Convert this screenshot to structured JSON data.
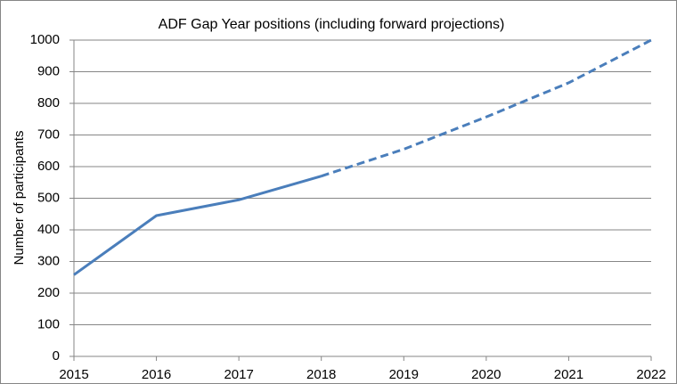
{
  "chart_data": {
    "type": "line",
    "title": "ADF Gap Year positions (including forward projections)",
    "y_label": "Number of participants",
    "x": [
      2015,
      2016,
      2017,
      2018,
      2019,
      2020,
      2021,
      2022
    ],
    "series": [
      {
        "color": "#4a7ebb",
        "dash": false,
        "values": [
          258,
          445,
          495,
          570,
          null,
          null,
          null,
          null
        ]
      },
      {
        "color": "#4a7ebb",
        "dash": true,
        "values": [
          null,
          null,
          null,
          570,
          655,
          757,
          865,
          1000
        ]
      }
    ],
    "xlim": [
      2015,
      2022
    ],
    "xticks": [
      2015,
      2016,
      2017,
      2018,
      2019,
      2020,
      2021,
      2022
    ],
    "ylim": [
      0,
      1000
    ],
    "yticks": [
      0,
      100,
      200,
      300,
      400,
      500,
      600,
      700,
      800,
      900,
      1000
    ],
    "grid": true
  }
}
